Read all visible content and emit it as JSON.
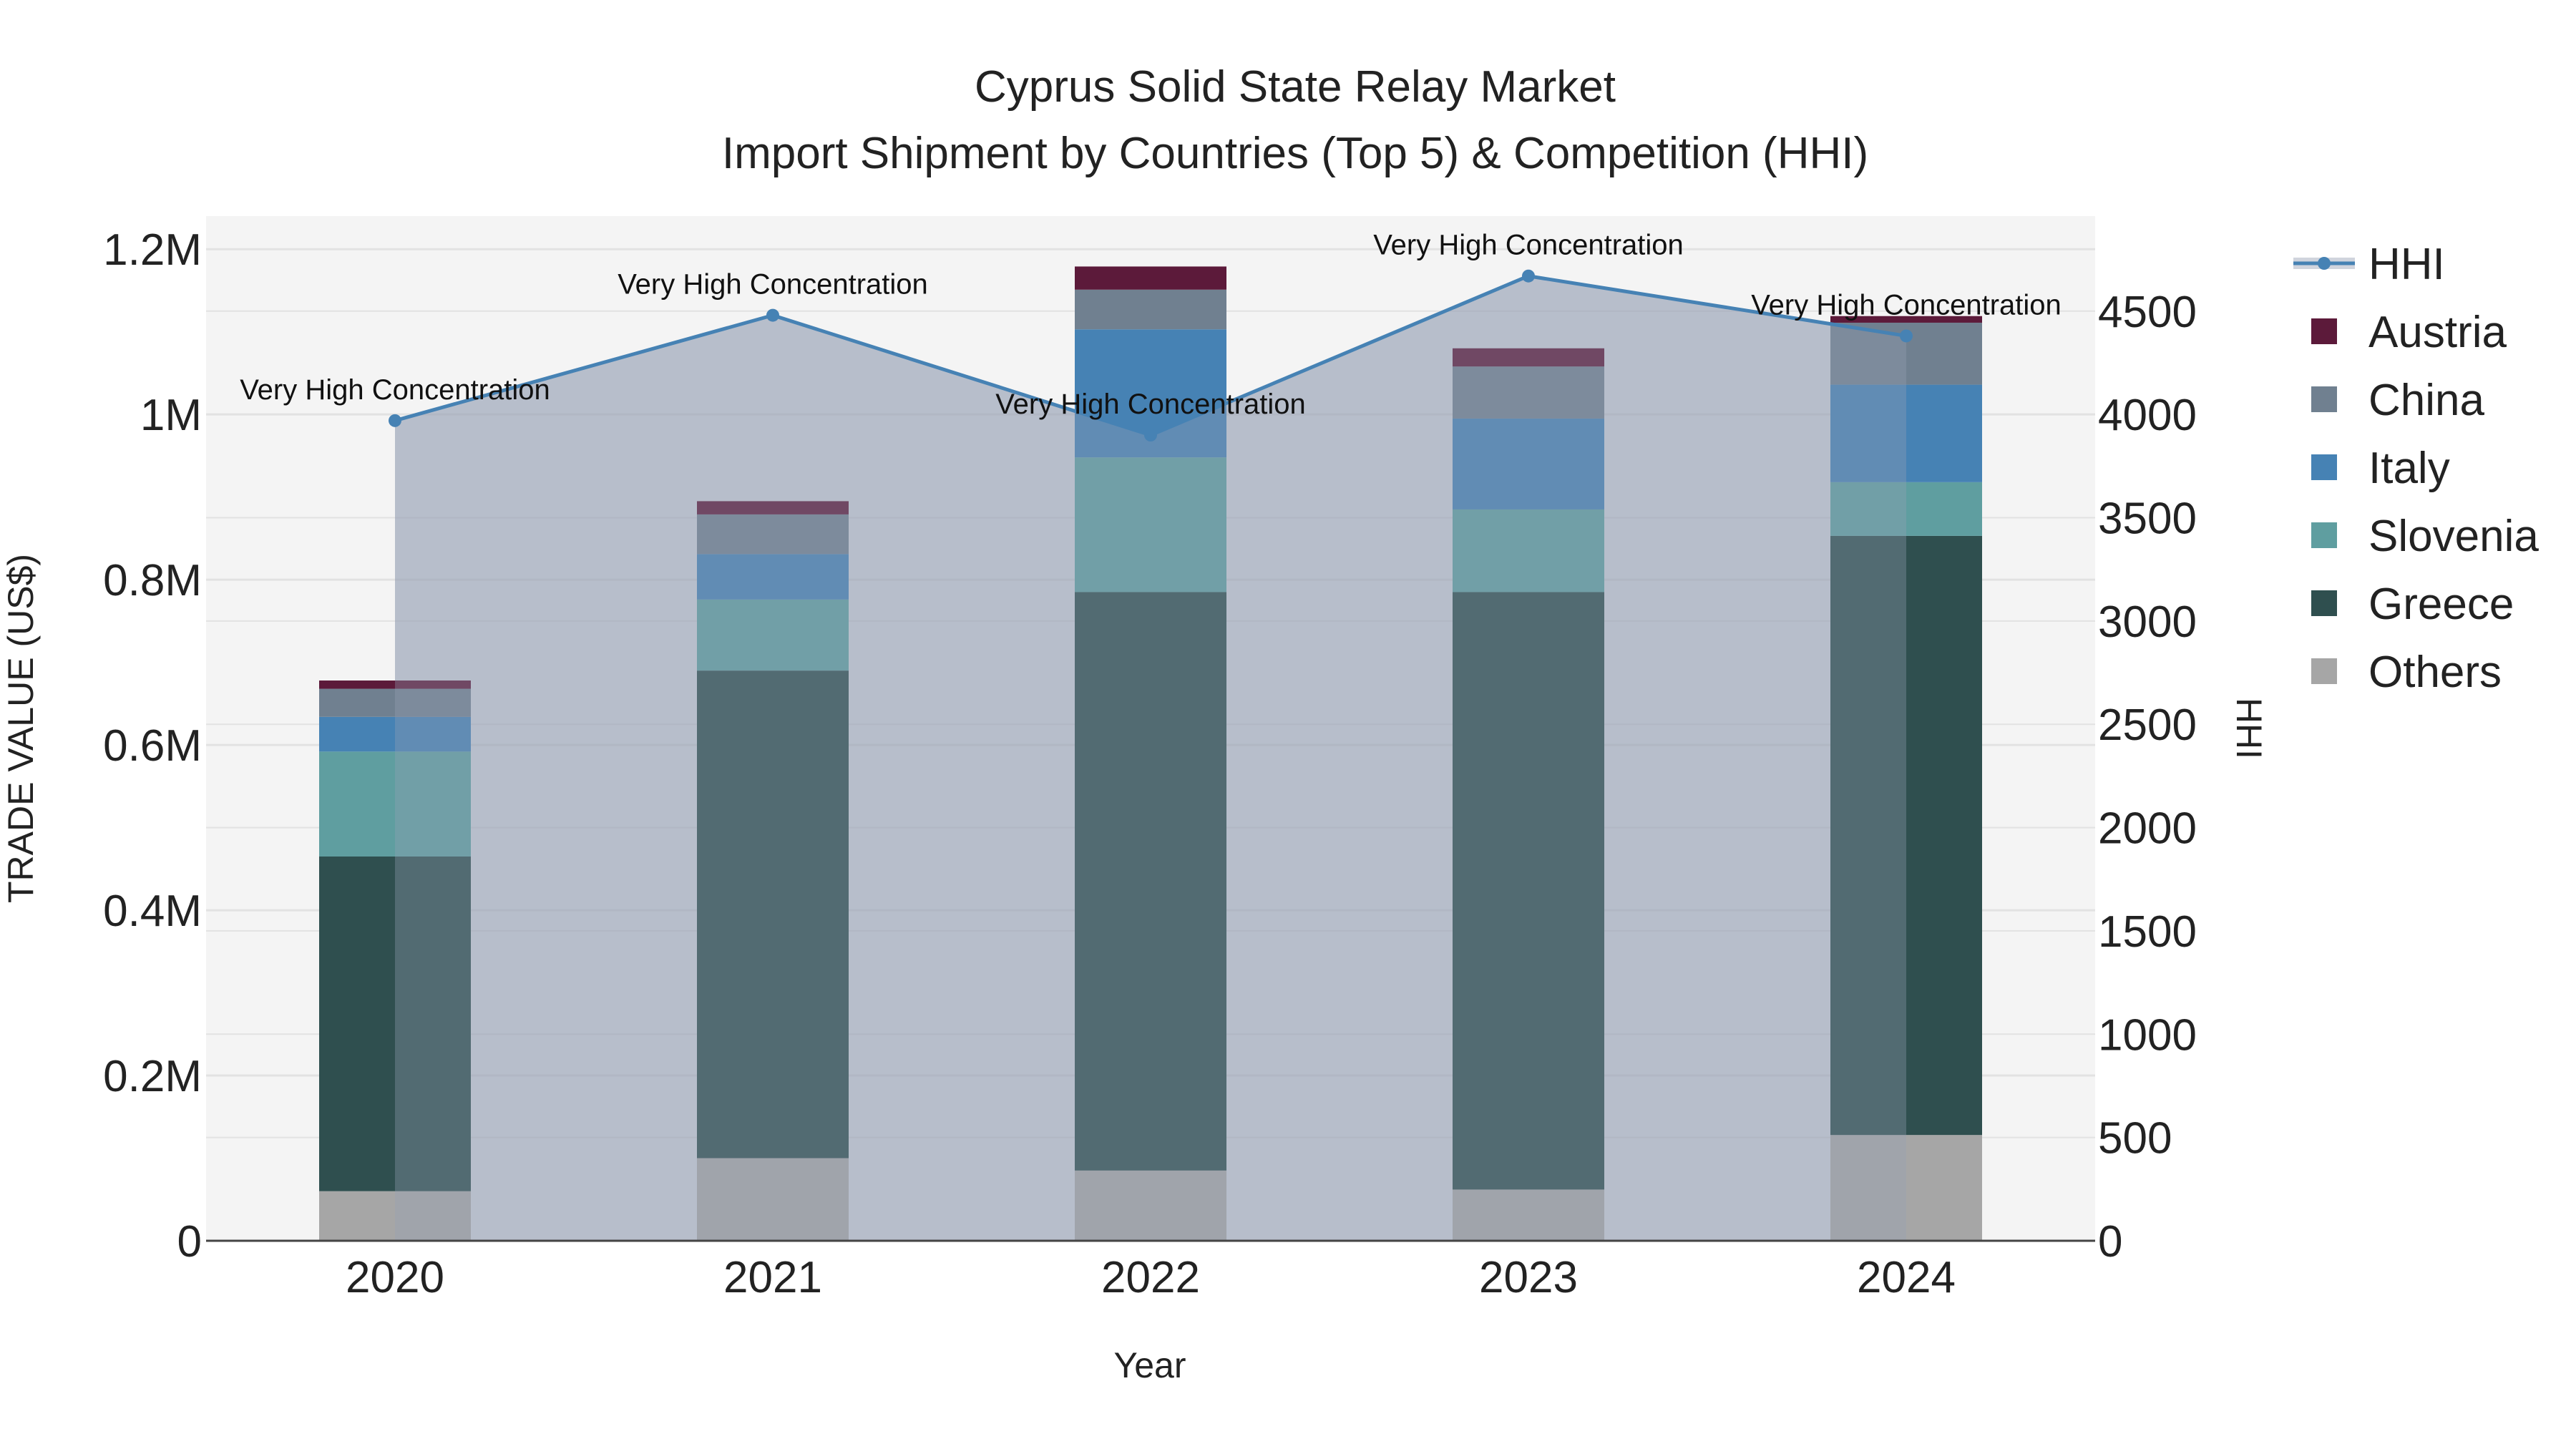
{
  "chart_data": {
    "type": "bar",
    "title": "Cyprus Solid State Relay Market",
    "subtitle": "Import Shipment by Countries (Top 5) & Competition (HHI)",
    "xlabel": "Year",
    "ylabel": "TRADE VALUE (US$)",
    "y2label": "HHI",
    "categories": [
      "2020",
      "2021",
      "2022",
      "2023",
      "2024"
    ],
    "ylim": [
      0,
      1240000
    ],
    "y2lim": [
      0,
      4960
    ],
    "yticks": [
      0,
      200000,
      400000,
      600000,
      800000,
      1000000,
      1200000
    ],
    "ytick_labels": [
      "0",
      "0.2M",
      "0.4M",
      "0.6M",
      "0.8M",
      "1M",
      "1.2M"
    ],
    "y2ticks": [
      0,
      500,
      1000,
      1500,
      2000,
      2500,
      3000,
      3500,
      4000,
      4500
    ],
    "y2tick_labels": [
      "0",
      "500",
      "1000",
      "1500",
      "2000",
      "2500",
      "3000",
      "3500",
      "4000",
      "4500"
    ],
    "series": [
      {
        "name": "Others",
        "color": "#a6a6a6",
        "values": [
          60000,
          100000,
          85000,
          62000,
          128000
        ]
      },
      {
        "name": "Greece",
        "color": "#2f4f4f",
        "values": [
          405000,
          590000,
          700000,
          723000,
          725000
        ]
      },
      {
        "name": "Slovenia",
        "color": "#5f9ea0",
        "values": [
          127000,
          86000,
          163000,
          100000,
          65000
        ]
      },
      {
        "name": "Italy",
        "color": "#4682b4",
        "values": [
          42000,
          55000,
          155000,
          110000,
          118000
        ]
      },
      {
        "name": "China",
        "color": "#708090",
        "values": [
          34000,
          48000,
          48000,
          63000,
          75000
        ]
      },
      {
        "name": "Austria",
        "color": "#5c1a3a",
        "values": [
          10000,
          16000,
          28000,
          22000,
          8000
        ]
      }
    ],
    "stack_order": [
      "Others",
      "Greece",
      "Slovenia",
      "Italy",
      "China",
      "Austria"
    ],
    "hhi": {
      "name": "HHI",
      "color": "#4682b4",
      "values": [
        3970,
        4480,
        3900,
        4670,
        4380
      ],
      "annotations": [
        "Very High Concentration",
        "Very High Concentration",
        "Very High Concentration",
        "Very High Concentration",
        "Very High Concentration"
      ]
    },
    "legend_items": [
      "HHI",
      "Austria",
      "China",
      "Italy",
      "Slovenia",
      "Greece",
      "Others"
    ],
    "legend_position": "right"
  }
}
